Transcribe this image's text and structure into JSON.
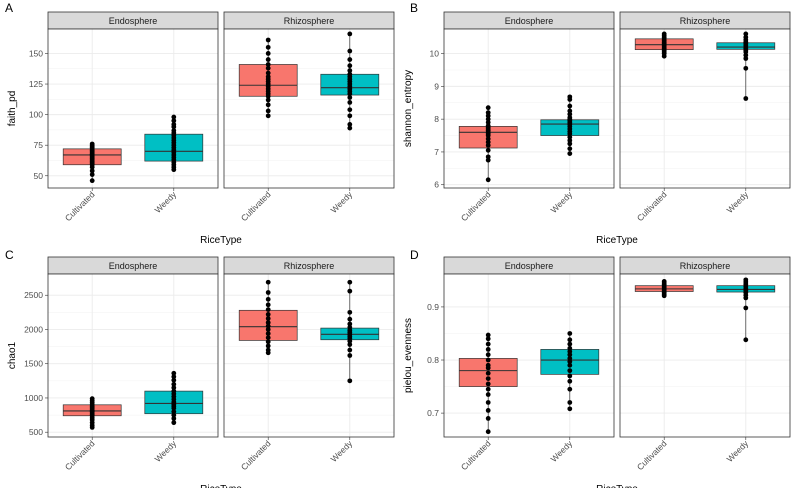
{
  "colors": {
    "cultivated": "#F8766D",
    "weedy": "#00BFC4",
    "strip": "#D9D9D9",
    "grid": "#EBEBEB",
    "border": "#333333"
  },
  "chart_data": [
    {
      "type": "box",
      "tag": "A",
      "ylabel": "faith_pd",
      "xlabel": "RiceType",
      "categories": [
        "Cultivated",
        "Weedy"
      ],
      "facets": [
        "Endosphere",
        "Rhizosphere"
      ],
      "ylim": [
        40,
        170
      ],
      "yticks": [
        50,
        75,
        100,
        125,
        150
      ],
      "boxes": {
        "Endosphere": [
          {
            "group": "Cultivated",
            "q1": 59,
            "median": 67,
            "q3": 72,
            "points": [
              46,
              51,
              54,
              57,
              59,
              60,
              61,
              62,
              63,
              64,
              65,
              66,
              67,
              67,
              68,
              69,
              70,
              71,
              72,
              73,
              74,
              75,
              76
            ]
          },
          {
            "group": "Weedy",
            "q1": 62,
            "median": 70,
            "q3": 84,
            "points": [
              55,
              57,
              59,
              61,
              63,
              65,
              67,
              69,
              71,
              73,
              75,
              77,
              79,
              81,
              83,
              85,
              87,
              90,
              92,
              95,
              98
            ]
          }
        ],
        "Rhizosphere": [
          {
            "group": "Cultivated",
            "q1": 115,
            "median": 124,
            "q3": 141,
            "points": [
              99,
              103,
              108,
              112,
              115,
              117,
              119,
              121,
              123,
              125,
              127,
              129,
              131,
              134,
              138,
              141,
              145,
              150,
              155,
              161
            ]
          },
          {
            "group": "Weedy",
            "q1": 116,
            "median": 122,
            "q3": 133,
            "points": [
              89,
              92,
              99,
              104,
              110,
              114,
              117,
              119,
              121,
              123,
              125,
              127,
              129,
              131,
              133,
              136,
              140,
              145,
              152,
              166
            ]
          }
        ]
      }
    },
    {
      "type": "box",
      "tag": "B",
      "ylabel": "shannon_entropy",
      "xlabel": "RiceType",
      "categories": [
        "Cultivated",
        "Weedy"
      ],
      "facets": [
        "Endosphere",
        "Rhizosphere"
      ],
      "ylim": [
        5.9,
        10.75
      ],
      "yticks": [
        6,
        7,
        8,
        9,
        10
      ],
      "boxes": {
        "Endosphere": [
          {
            "group": "Cultivated",
            "q1": 7.12,
            "median": 7.6,
            "q3": 7.78,
            "points": [
              6.15,
              6.75,
              6.85,
              7.05,
              7.2,
              7.3,
              7.4,
              7.5,
              7.55,
              7.6,
              7.65,
              7.7,
              7.75,
              7.8,
              7.9,
              8.0,
              8.1,
              8.2,
              8.35
            ]
          },
          {
            "group": "Weedy",
            "q1": 7.5,
            "median": 7.85,
            "q3": 7.98,
            "points": [
              6.95,
              7.1,
              7.25,
              7.35,
              7.45,
              7.55,
              7.62,
              7.7,
              7.78,
              7.85,
              7.9,
              7.95,
              8.0,
              8.05,
              8.15,
              8.25,
              8.4,
              8.6,
              8.68
            ]
          }
        ],
        "Rhizosphere": [
          {
            "group": "Cultivated",
            "q1": 10.12,
            "median": 10.27,
            "q3": 10.45,
            "points": [
              9.92,
              10.0,
              10.05,
              10.1,
              10.15,
              10.2,
              10.25,
              10.3,
              10.35,
              10.4,
              10.45,
              10.5,
              10.55,
              10.6
            ]
          },
          {
            "group": "Weedy",
            "q1": 10.13,
            "median": 10.2,
            "q3": 10.33,
            "points": [
              8.63,
              9.55,
              9.85,
              9.95,
              10.05,
              10.1,
              10.15,
              10.2,
              10.25,
              10.3,
              10.35,
              10.42,
              10.5,
              10.6
            ]
          }
        ]
      }
    },
    {
      "type": "box",
      "tag": "C",
      "ylabel": "chao1",
      "xlabel": "RiceType",
      "categories": [
        "Cultivated",
        "Weedy"
      ],
      "facets": [
        "Endosphere",
        "Rhizosphere"
      ],
      "ylim": [
        430,
        2810
      ],
      "yticks": [
        500,
        1000,
        1500,
        2000,
        2500
      ],
      "boxes": {
        "Endosphere": [
          {
            "group": "Cultivated",
            "q1": 740,
            "median": 810,
            "q3": 900,
            "points": [
              570,
              600,
              640,
              680,
              710,
              740,
              760,
              780,
              800,
              820,
              840,
              860,
              880,
              900,
              930,
              960,
              990
            ]
          },
          {
            "group": "Weedy",
            "q1": 770,
            "median": 920,
            "q3": 1100,
            "points": [
              640,
              700,
              750,
              800,
              850,
              880,
              910,
              940,
              980,
              1020,
              1060,
              1100,
              1150,
              1200,
              1260,
              1310,
              1360
            ]
          }
        ],
        "Rhizosphere": [
          {
            "group": "Cultivated",
            "q1": 1840,
            "median": 2040,
            "q3": 2280,
            "points": [
              1660,
              1700,
              1760,
              1820,
              1880,
              1940,
              2000,
              2050,
              2100,
              2160,
              2220,
              2290,
              2360,
              2440,
              2540,
              2690
            ]
          },
          {
            "group": "Weedy",
            "q1": 1850,
            "median": 1930,
            "q3": 2020,
            "points": [
              1250,
              1620,
              1700,
              1780,
              1830,
              1870,
              1900,
              1930,
              1960,
              1990,
              2030,
              2080,
              2150,
              2250,
              2560,
              2690
            ]
          }
        ]
      }
    },
    {
      "type": "box",
      "tag": "D",
      "ylabel": "pielou_evenness",
      "xlabel": "RiceType",
      "categories": [
        "Cultivated",
        "Weedy"
      ],
      "facets": [
        "Endosphere",
        "Rhizosphere"
      ],
      "ylim": [
        0.655,
        0.962
      ],
      "yticks": [
        0.7,
        0.8,
        0.9
      ],
      "boxes": {
        "Endosphere": [
          {
            "group": "Cultivated",
            "q1": 0.75,
            "median": 0.78,
            "q3": 0.803,
            "points": [
              0.665,
              0.69,
              0.705,
              0.72,
              0.735,
              0.745,
              0.755,
              0.765,
              0.775,
              0.785,
              0.79,
              0.8,
              0.81,
              0.82,
              0.83,
              0.84,
              0.847
            ]
          },
          {
            "group": "Weedy",
            "q1": 0.773,
            "median": 0.8,
            "q3": 0.82,
            "points": [
              0.708,
              0.72,
              0.745,
              0.76,
              0.77,
              0.78,
              0.79,
              0.797,
              0.803,
              0.81,
              0.816,
              0.822,
              0.83,
              0.838,
              0.85
            ]
          }
        ],
        "Rhizosphere": [
          {
            "group": "Cultivated",
            "q1": 0.929,
            "median": 0.934,
            "q3": 0.94,
            "points": [
              0.921,
              0.924,
              0.927,
              0.93,
              0.933,
              0.936,
              0.939,
              0.942,
              0.945,
              0.948
            ]
          },
          {
            "group": "Weedy",
            "q1": 0.928,
            "median": 0.933,
            "q3": 0.94,
            "points": [
              0.838,
              0.898,
              0.917,
              0.922,
              0.927,
              0.931,
              0.935,
              0.939,
              0.943,
              0.947,
              0.951
            ]
          }
        ]
      }
    }
  ]
}
